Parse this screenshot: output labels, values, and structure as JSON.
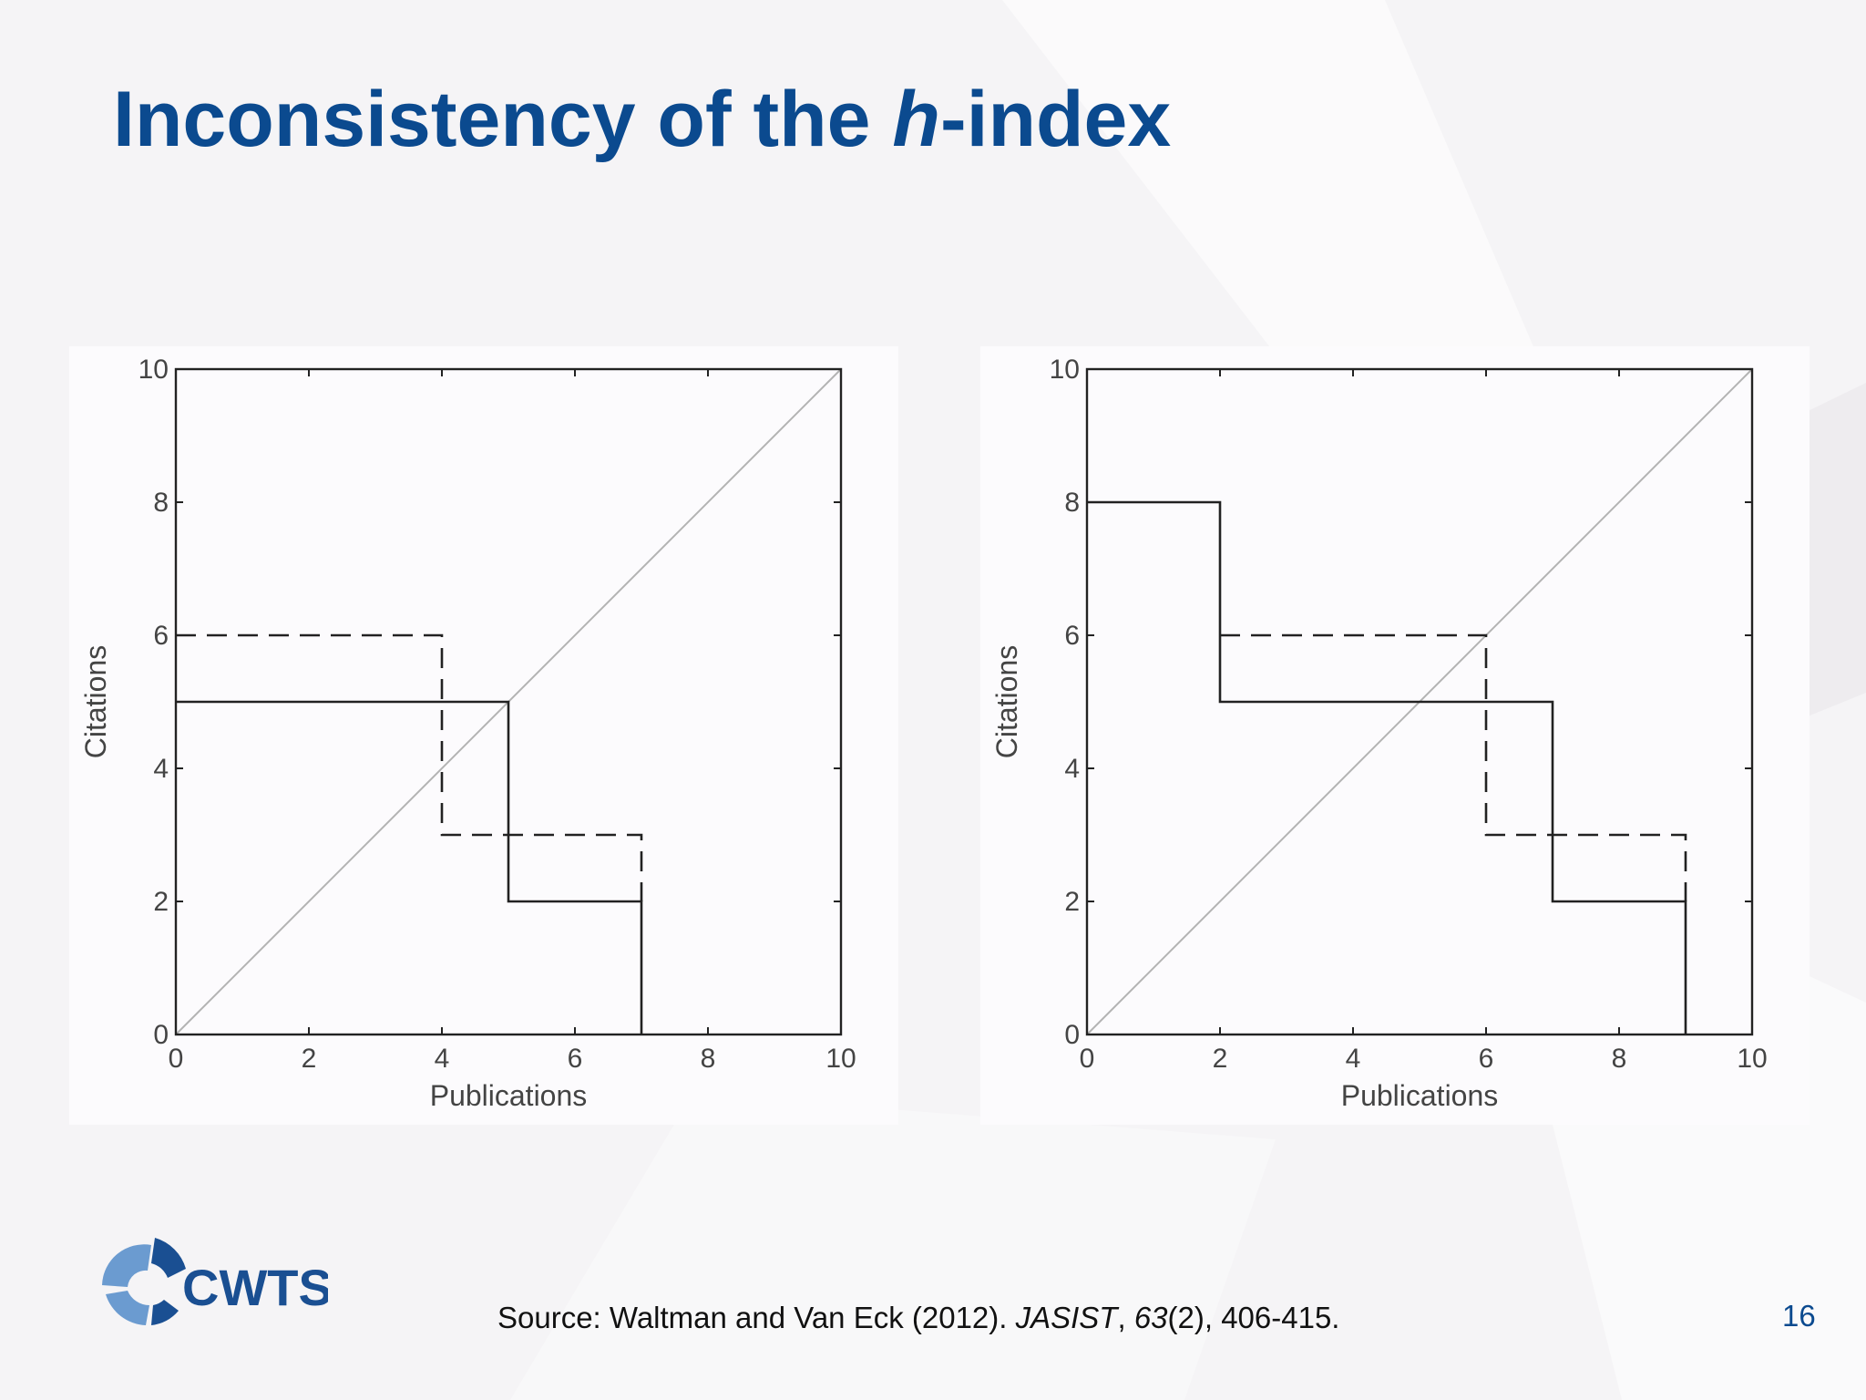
{
  "slide": {
    "title_part1": "Inconsistency of the ",
    "title_italic": "h",
    "title_part2": "-index",
    "page_number": "16",
    "logo_text": "CWTS"
  },
  "source": {
    "prefix": "Source: Waltman and Van Eck (2012). ",
    "journal": "JASIST",
    "sep": ", ",
    "volume": "63",
    "rest": "(2), 406-415."
  },
  "colors": {
    "title": "#0b4a8f",
    "logo_dark": "#1a4f92",
    "logo_light": "#6b9bd0",
    "diagonal": "#b3b3b3",
    "lines": "#222222"
  },
  "chart_data": [
    {
      "type": "line",
      "xlabel": "Publications",
      "ylabel": "Citations",
      "xlim": [
        0,
        10
      ],
      "ylim": [
        0,
        10
      ],
      "xticks": [
        0,
        2,
        4,
        6,
        8,
        10
      ],
      "yticks": [
        0,
        2,
        4,
        6,
        8,
        10
      ],
      "series": [
        {
          "style": "diagonal",
          "x": [
            0,
            10
          ],
          "y": [
            0,
            10
          ]
        },
        {
          "style": "solid",
          "x": [
            0,
            5,
            5,
            7,
            7
          ],
          "y": [
            5,
            5,
            2,
            2,
            0
          ]
        },
        {
          "style": "dashed",
          "x": [
            0,
            4,
            4,
            7,
            7
          ],
          "y": [
            6,
            6,
            3,
            3,
            2
          ]
        }
      ]
    },
    {
      "type": "line",
      "xlabel": "Publications",
      "ylabel": "Citations",
      "xlim": [
        0,
        10
      ],
      "ylim": [
        0,
        10
      ],
      "xticks": [
        0,
        2,
        4,
        6,
        8,
        10
      ],
      "yticks": [
        0,
        2,
        4,
        6,
        8,
        10
      ],
      "series": [
        {
          "style": "diagonal",
          "x": [
            0,
            10
          ],
          "y": [
            0,
            10
          ]
        },
        {
          "style": "solid",
          "x": [
            0,
            2,
            2,
            7,
            7,
            9,
            9
          ],
          "y": [
            8,
            8,
            5,
            5,
            2,
            2,
            0
          ]
        },
        {
          "style": "dashed",
          "x": [
            2,
            6,
            6,
            9,
            9
          ],
          "y": [
            6,
            6,
            3,
            3,
            2
          ]
        }
      ]
    }
  ]
}
